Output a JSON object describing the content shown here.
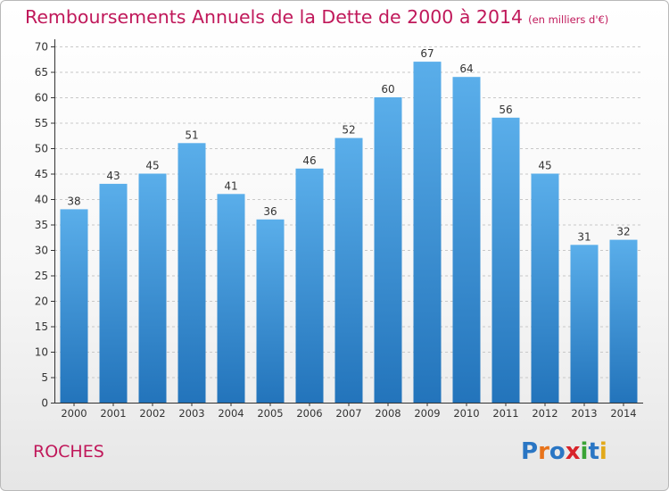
{
  "header": {
    "title": "Remboursements Annuels de la Dette de 2000 à 2014",
    "unit": "(en milliers d'€)"
  },
  "footer": {
    "commune": "ROCHES",
    "logo_text": "Proxiti"
  },
  "colors": {
    "title": "#c0185a",
    "bar_top": "#5aaeea",
    "bar_bottom": "#2374bb",
    "axis": "#333333",
    "grid": "#c8c8c8"
  },
  "chart_data": {
    "type": "bar",
    "title": "Remboursements Annuels de la Dette de 2000 à 2014",
    "subtitle": "(en milliers d'€)",
    "categories": [
      "2000",
      "2001",
      "2002",
      "2003",
      "2004",
      "2005",
      "2006",
      "2007",
      "2008",
      "2009",
      "2010",
      "2011",
      "2012",
      "2013",
      "2014"
    ],
    "values": [
      38,
      43,
      45,
      51,
      41,
      36,
      46,
      52,
      60,
      67,
      64,
      56,
      45,
      31,
      32
    ],
    "xlabel": "",
    "ylabel": "",
    "ylim": [
      0,
      70
    ],
    "yticks": [
      0,
      5,
      10,
      15,
      20,
      25,
      30,
      35,
      40,
      45,
      50,
      55,
      60,
      65,
      70
    ],
    "grid": true,
    "data_labels": true,
    "legend": "none"
  }
}
